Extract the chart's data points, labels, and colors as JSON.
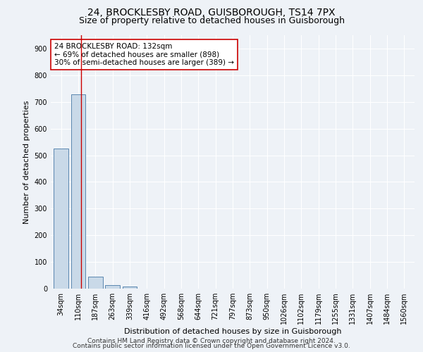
{
  "title": "24, BROCKLESBY ROAD, GUISBOROUGH, TS14 7PX",
  "subtitle": "Size of property relative to detached houses in Guisborough",
  "xlabel": "Distribution of detached houses by size in Guisborough",
  "ylabel": "Number of detached properties",
  "categories": [
    "34sqm",
    "110sqm",
    "187sqm",
    "263sqm",
    "339sqm",
    "416sqm",
    "492sqm",
    "568sqm",
    "644sqm",
    "721sqm",
    "797sqm",
    "873sqm",
    "950sqm",
    "1026sqm",
    "1102sqm",
    "1179sqm",
    "1255sqm",
    "1331sqm",
    "1407sqm",
    "1484sqm",
    "1560sqm"
  ],
  "values": [
    525,
    728,
    46,
    12,
    8,
    0,
    0,
    0,
    0,
    0,
    0,
    0,
    0,
    0,
    0,
    0,
    0,
    0,
    0,
    0,
    0
  ],
  "bar_color": "#c9d9e8",
  "bar_edge_color": "#5a87b0",
  "property_line_x": 1.18,
  "property_line_color": "#cc0000",
  "annotation_text": "24 BROCKLESBY ROAD: 132sqm\n← 69% of detached houses are smaller (898)\n30% of semi-detached houses are larger (389) →",
  "annotation_box_color": "#ffffff",
  "annotation_box_edge": "#cc0000",
  "ylim": [
    0,
    950
  ],
  "yticks": [
    0,
    100,
    200,
    300,
    400,
    500,
    600,
    700,
    800,
    900
  ],
  "footer_line1": "Contains HM Land Registry data © Crown copyright and database right 2024.",
  "footer_line2": "Contains public sector information licensed under the Open Government Licence v3.0.",
  "background_color": "#eef2f7",
  "plot_background": "#eef2f7",
  "grid_color": "#ffffff",
  "title_fontsize": 10,
  "subtitle_fontsize": 9,
  "axis_label_fontsize": 8,
  "tick_fontsize": 7,
  "annotation_fontsize": 7.5,
  "footer_fontsize": 6.5
}
